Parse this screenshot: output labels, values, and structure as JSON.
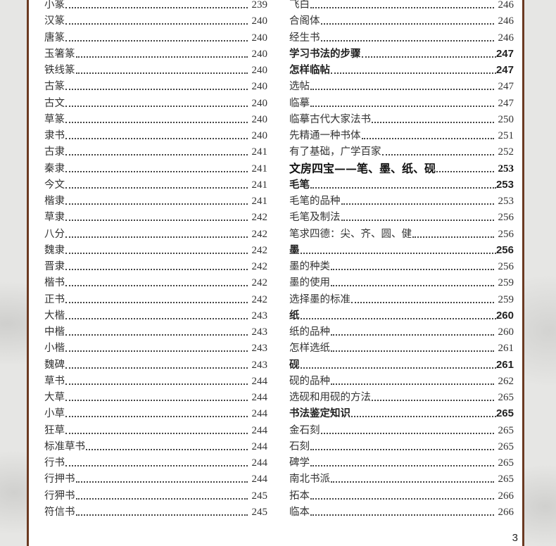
{
  "left_column": [
    {
      "title": "小篆",
      "page": "239"
    },
    {
      "title": "汉篆",
      "page": "240"
    },
    {
      "title": "唐篆",
      "page": "240"
    },
    {
      "title": "玉箸篆",
      "page": "240"
    },
    {
      "title": "铁线篆",
      "page": "240"
    },
    {
      "title": "古篆",
      "page": "240"
    },
    {
      "title": "古文",
      "page": "240"
    },
    {
      "title": "草篆",
      "page": "240"
    },
    {
      "title": "隶书",
      "page": "240"
    },
    {
      "title": "古隶",
      "page": "241"
    },
    {
      "title": "秦隶",
      "page": "241"
    },
    {
      "title": "今文",
      "page": "241"
    },
    {
      "title": "楷隶",
      "page": "241"
    },
    {
      "title": "草隶",
      "page": "242"
    },
    {
      "title": "八分",
      "page": "242"
    },
    {
      "title": "魏隶",
      "page": "242"
    },
    {
      "title": "晋隶",
      "page": "242"
    },
    {
      "title": "楷书",
      "page": "242"
    },
    {
      "title": "正书",
      "page": "242"
    },
    {
      "title": "大楷",
      "page": "243"
    },
    {
      "title": "中楷",
      "page": "243"
    },
    {
      "title": "小楷",
      "page": "243"
    },
    {
      "title": "魏碑",
      "page": "243"
    },
    {
      "title": "草书",
      "page": "244"
    },
    {
      "title": "大草",
      "page": "244"
    },
    {
      "title": "小草",
      "page": "244"
    },
    {
      "title": "狂草",
      "page": "244"
    },
    {
      "title": "标准草书",
      "page": "244"
    },
    {
      "title": "行书",
      "page": "244"
    },
    {
      "title": "行押书",
      "page": "244"
    },
    {
      "title": "行狎书",
      "page": "245"
    },
    {
      "title": "符信书",
      "page": "245"
    }
  ],
  "right_column": [
    {
      "title": "飞白",
      "page": "246"
    },
    {
      "title": "合阁体",
      "page": "246"
    },
    {
      "title": "经生书",
      "page": "246"
    },
    {
      "title": "学习书法的步骤",
      "page": "247",
      "style": "bold"
    },
    {
      "title": "怎样临帖",
      "page": "247",
      "style": "bold"
    },
    {
      "title": "选帖",
      "page": "247"
    },
    {
      "title": "临摹",
      "page": "247"
    },
    {
      "title": "临摹古代大家法书",
      "page": "250"
    },
    {
      "title": "先精通一种书体",
      "page": "251"
    },
    {
      "title": "有了基础，广学百家",
      "page": "252"
    },
    {
      "title": "文房四宝——笔、墨、纸、砚",
      "page": "253",
      "style": "big"
    },
    {
      "title": "毛笔",
      "page": "253",
      "style": "bold"
    },
    {
      "title": "毛笔的品种",
      "page": "253"
    },
    {
      "title": "毛笔及制法",
      "page": "256"
    },
    {
      "title": "笔求四德：尖、齐、圆、健",
      "page": "256"
    },
    {
      "title": "墨",
      "page": "256",
      "style": "bold"
    },
    {
      "title": "墨的种类",
      "page": "256"
    },
    {
      "title": "墨的使用",
      "page": "259"
    },
    {
      "title": "选择墨的标准",
      "page": "259"
    },
    {
      "title": "纸",
      "page": "260",
      "style": "bold"
    },
    {
      "title": "纸的品种",
      "page": "260"
    },
    {
      "title": "怎样选纸",
      "page": "261"
    },
    {
      "title": "砚",
      "page": "261",
      "style": "bold"
    },
    {
      "title": "砚的品种",
      "page": "262"
    },
    {
      "title": "选砚和用砚的方法",
      "page": "265"
    },
    {
      "title": "书法鉴定知识",
      "page": "265",
      "style": "bold"
    },
    {
      "title": "金石刻",
      "page": "265"
    },
    {
      "title": "石刻",
      "page": "265"
    },
    {
      "title": "碑学",
      "page": "265"
    },
    {
      "title": "南北书派",
      "page": "265"
    },
    {
      "title": "拓本",
      "page": "266"
    },
    {
      "title": "临本",
      "page": "266"
    }
  ],
  "page_number": "3",
  "colors": {
    "border": "#6b3a22",
    "text": "#333333",
    "background": "#e6e6e4"
  }
}
